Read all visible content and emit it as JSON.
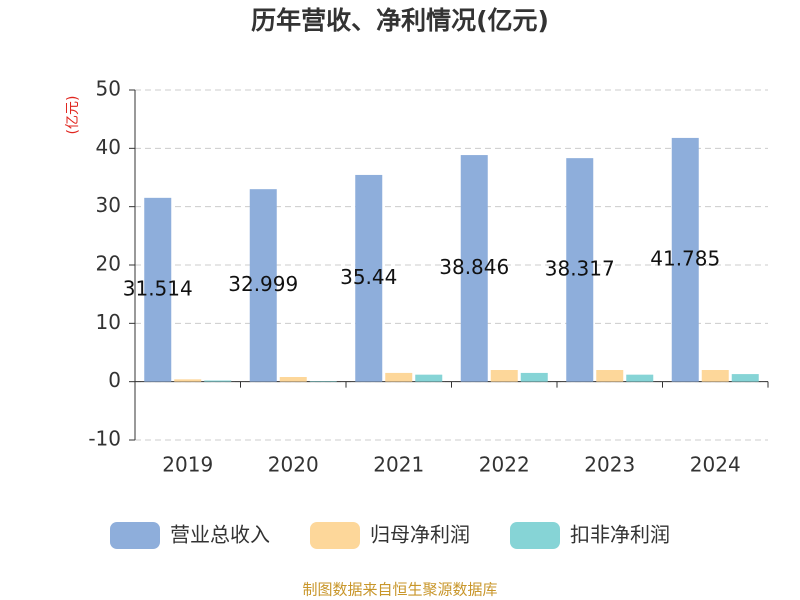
{
  "chart_data": {
    "type": "bar",
    "title": "历年营收、净利情况(亿元)",
    "y_label": "(亿元)",
    "source": "制图数据来自恒生聚源数据库",
    "categories": [
      "2019",
      "2020",
      "2021",
      "2022",
      "2023",
      "2024"
    ],
    "series": [
      {
        "name": "营业总收入",
        "color": "#8eaedb",
        "values": [
          31.514,
          32.999,
          35.44,
          38.846,
          38.317,
          41.785
        ]
      },
      {
        "name": "归母净利润",
        "color": "#fdd79a",
        "values": [
          0.4,
          0.8,
          1.5,
          2.0,
          2.0,
          2.0
        ]
      },
      {
        "name": "扣非净利润",
        "color": "#86d4d6",
        "values": [
          0.2,
          0.1,
          1.2,
          1.5,
          1.2,
          1.3
        ]
      }
    ],
    "ylim": [
      -10,
      50
    ],
    "yticks": [
      -10,
      0,
      10,
      20,
      30,
      40,
      50
    ],
    "grid": true
  }
}
